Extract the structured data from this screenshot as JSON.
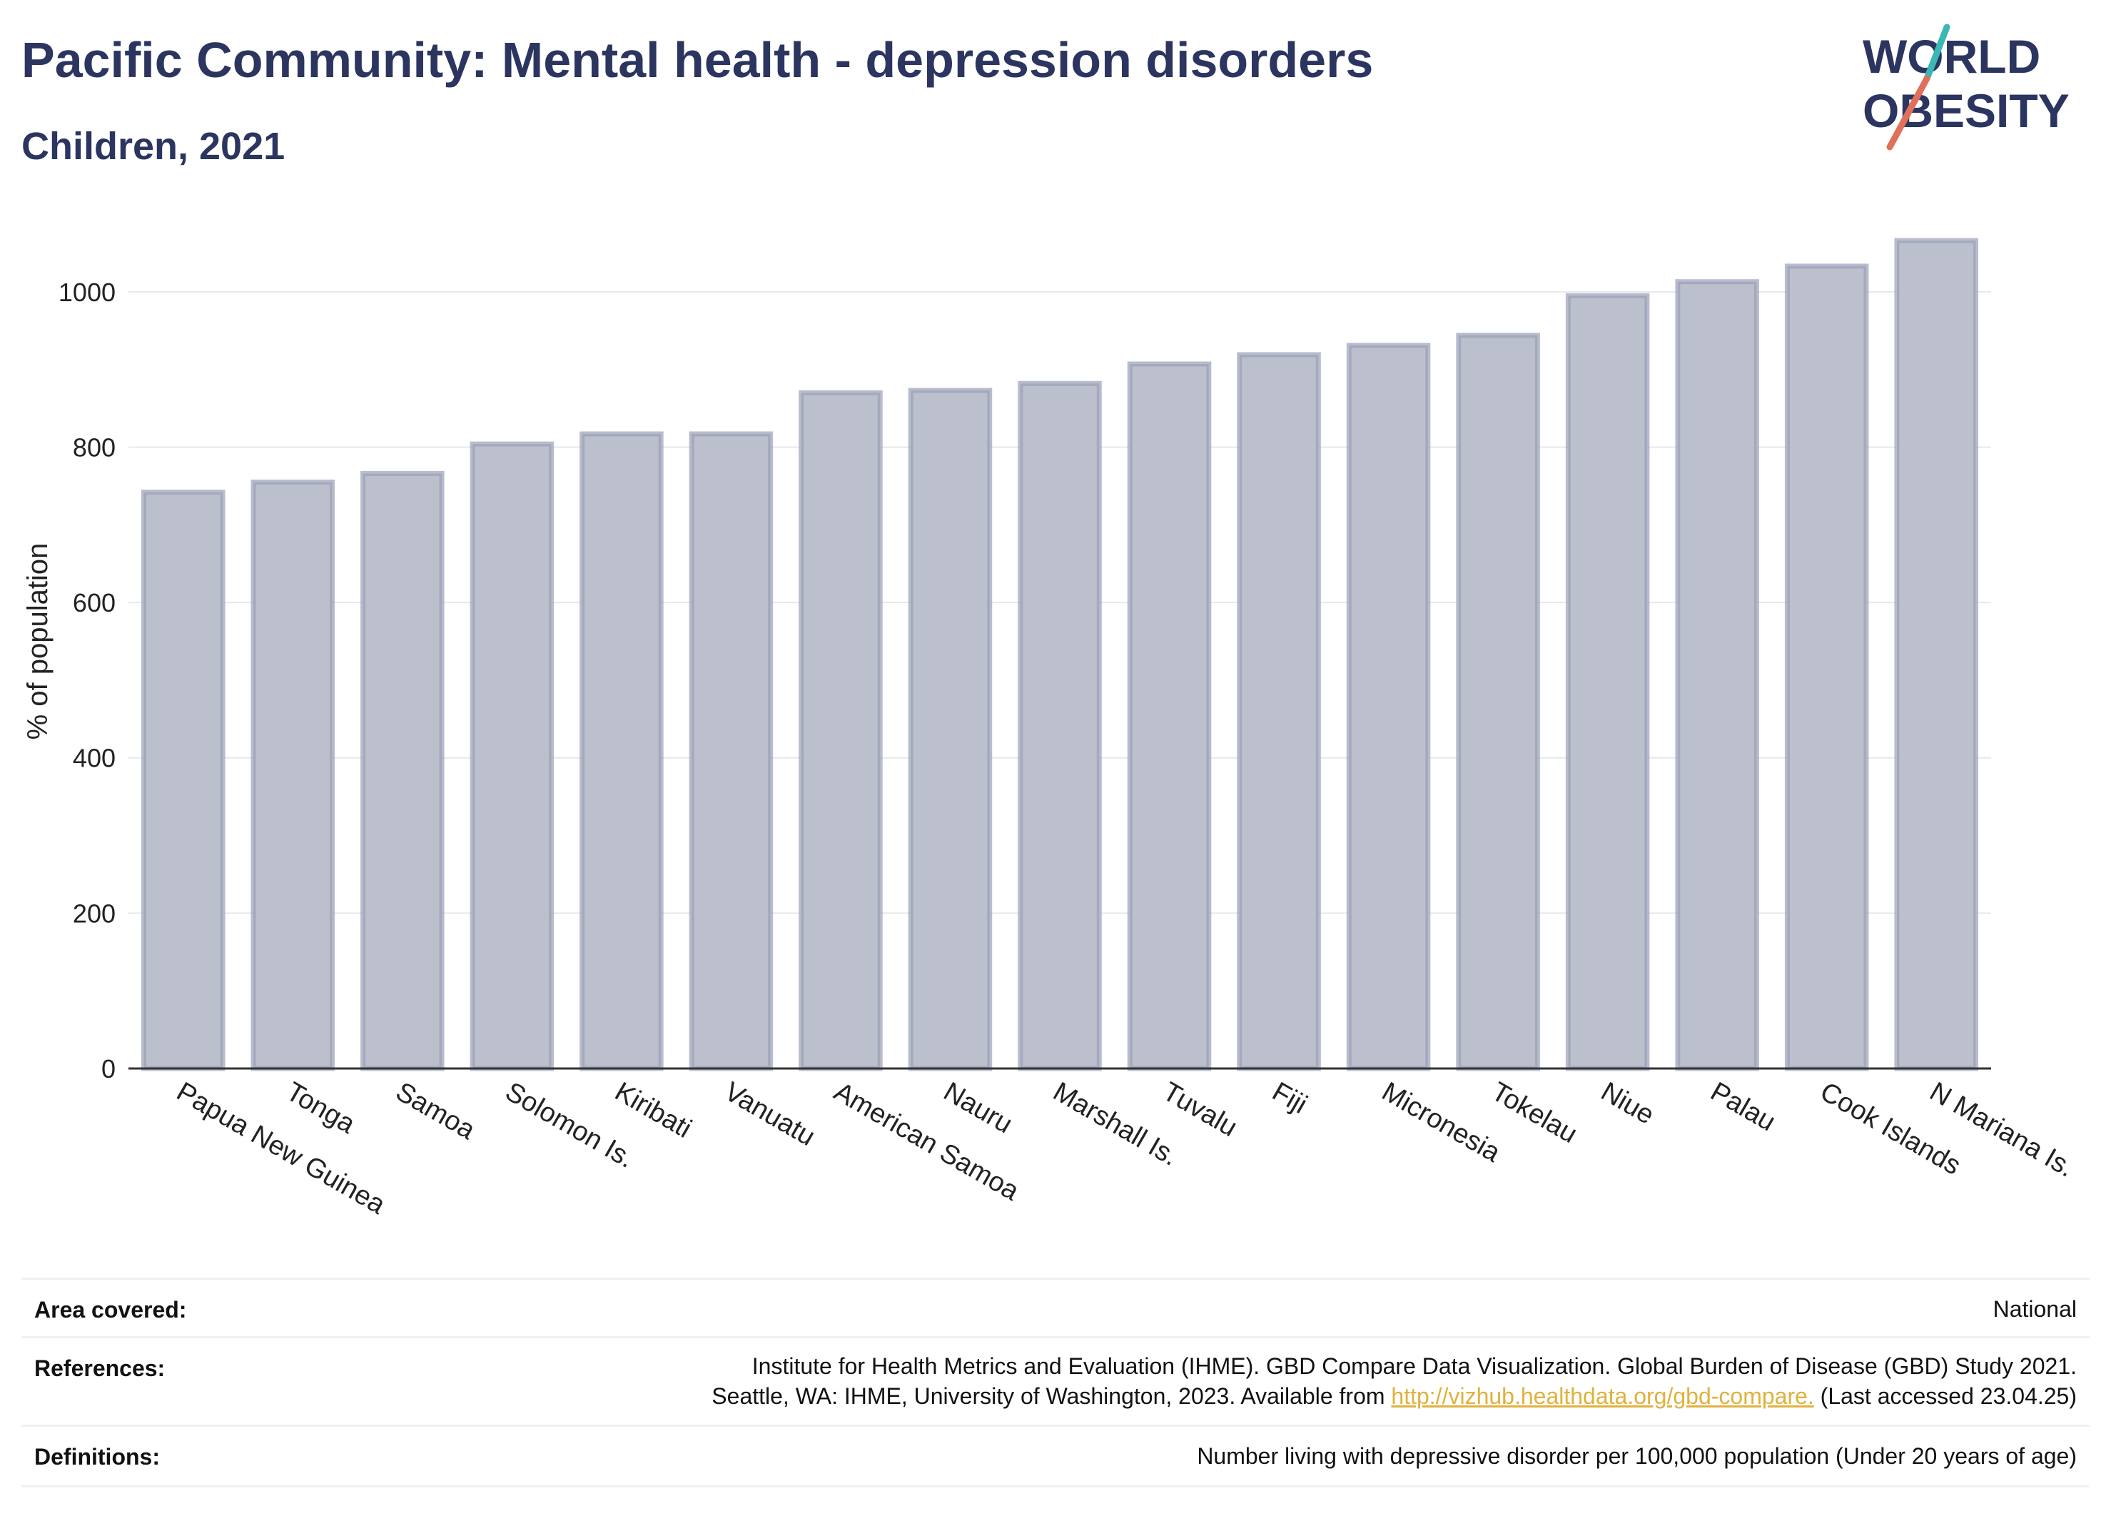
{
  "header": {
    "title": "Pacific Community: Mental health - depression disorders",
    "subtitle": "Children, 2021"
  },
  "logo": {
    "line1": "WORLD",
    "line2": "OBESITY",
    "colors": {
      "text": "#2b3560",
      "slash_top": "#3bb8b5",
      "slash_bottom": "#e0705a"
    }
  },
  "chart_data": {
    "type": "bar",
    "title": "Pacific Community: Mental health - depression disorders",
    "subtitle": "Children, 2021",
    "ylabel": "% of population",
    "xlabel": "",
    "ylim": [
      0,
      1100
    ],
    "yticks": [
      0,
      200,
      400,
      600,
      800,
      1000
    ],
    "grid": true,
    "bar_fill": "#bcc0cd",
    "bar_stroke": "#9aa0b8",
    "categories": [
      "Papua New Guinea",
      "Tonga",
      "Samoa",
      "Solomon Is.",
      "Kiribati",
      "Vanuatu",
      "American Samoa",
      "Nauru",
      "Marshall Is.",
      "Tuvalu",
      "Fiji",
      "Micronesia",
      "Tokelau",
      "Niue",
      "Palau",
      "Cook Islands",
      "N Mariana Is."
    ],
    "values": [
      742,
      755,
      766,
      804,
      817,
      817,
      870,
      873,
      882,
      907,
      919,
      931,
      944,
      995,
      1013,
      1033,
      1066
    ]
  },
  "footer": {
    "area_label": "Area covered:",
    "area_value": "National",
    "references_label": "References:",
    "references_line1": "Institute for Health Metrics and Evaluation (IHME). GBD Compare Data Visualization. Global Burden of Disease (GBD) Study 2021.",
    "references_line2_pre": "Seattle, WA: IHME, University of Washington, 2023. Available from ",
    "references_link": "http://vizhub.healthdata.org/gbd-compare.",
    "references_line2_post": " (Last accessed 23.04.25)",
    "definitions_label": "Definitions:",
    "definitions_value": "Number living with depressive disorder per 100,000 population (Under 20 years of age)"
  }
}
